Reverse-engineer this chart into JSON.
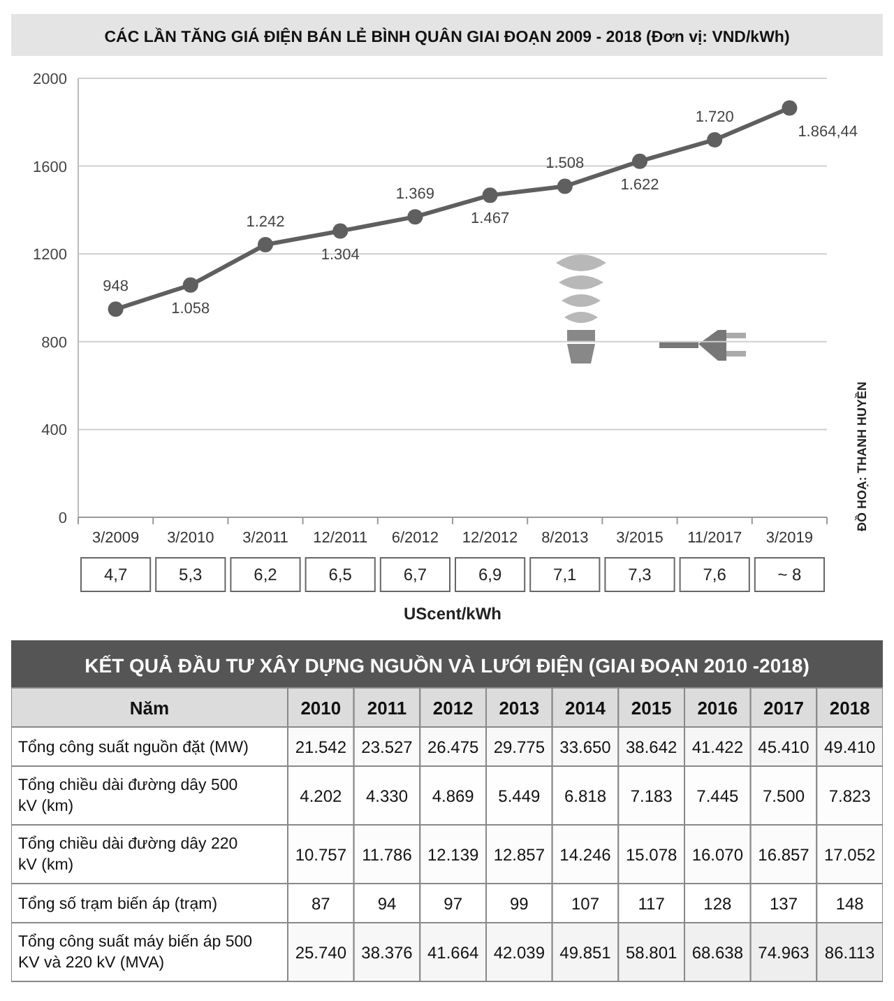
{
  "chart_data": [
    {
      "type": "line",
      "title": "CÁC LẦN TĂNG GIÁ ĐIỆN BÁN LẺ BÌNH QUÂN GIAI ĐOẠN 2009 - 2018 (Đơn vị: VND/kWh)",
      "categories": [
        "3/2009",
        "3/2010",
        "3/2011",
        "12/2011",
        "6/2012",
        "12/2012",
        "8/2013",
        "3/2015",
        "11/2017",
        "3/2019"
      ],
      "series": [
        {
          "color": "#5f5f5f",
          "values": [
            948,
            1058,
            1242,
            1304,
            1369,
            1467,
            1508,
            1622,
            1720,
            1864.44
          ]
        }
      ],
      "value_labels": [
        "948",
        "1.058",
        "1.242",
        "1.304",
        "1.369",
        "1.467",
        "1.508",
        "1.622",
        "1.720",
        "1.864,44"
      ],
      "ylim": [
        0,
        2000
      ],
      "yticks": [
        0,
        400,
        800,
        1200,
        1600,
        2000
      ],
      "grid": "y",
      "marker": "circle",
      "xlabel": "UScent/kWh",
      "annotations": [
        "4,7",
        "5,3",
        "6,2",
        "6,5",
        "6,7",
        "6,9",
        "7,1",
        "7,3",
        "7,6",
        "~ 8",
        "ĐỒ HOẠ: THANH HUYỀN"
      ]
    },
    {
      "type": "heatmap",
      "title": "KẾT QUẢ ĐẦU TƯ XÂY DỰNG NGUỒN VÀ LƯỚI ĐIỆN (GIAI ĐOẠN 2010 -2018)",
      "ylabel": "Năm",
      "categories": [
        "2010",
        "2011",
        "2012",
        "2013",
        "2014",
        "2015",
        "2016",
        "2017",
        "2018"
      ],
      "y_categories": [
        "Tổng công suất nguồn đặt (MW)",
        "Tổng chiều dài đường dây 500 kV (km)",
        "Tổng chiều dài đường dây 220 kV (km)",
        "Tổng số trạm biến áp (trạm)",
        "Tổng công suất máy biến áp 500 KV và 220 kV (MVA)"
      ],
      "cells": [
        [
          21542,
          23527,
          26475,
          29775,
          33650,
          38642,
          41422,
          45410,
          49410
        ],
        [
          4202,
          4330,
          4869,
          5449,
          6818,
          7183,
          7445,
          7500,
          7823
        ],
        [
          10757,
          11786,
          12139,
          12857,
          14246,
          15078,
          16070,
          16857,
          17052
        ],
        [
          87,
          94,
          97,
          99,
          107,
          117,
          128,
          137,
          148
        ],
        [
          25740,
          38376,
          41664,
          42039,
          49851,
          58801,
          68638,
          74963,
          86113
        ]
      ],
      "cell_labels": [
        [
          "21.542",
          "23.527",
          "26.475",
          "29.775",
          "33.650",
          "38.642",
          "41.422",
          "45.410",
          "49.410"
        ],
        [
          "4.202",
          "4.330",
          "4.869",
          "5.449",
          "6.818",
          "7.183",
          "7.445",
          "7.500",
          "7.823"
        ],
        [
          "10.757",
          "11.786",
          "12.139",
          "12.857",
          "14.246",
          "15.078",
          "16.070",
          "16.857",
          "17.052"
        ],
        [
          "87",
          "94",
          "97",
          "99",
          "107",
          "117",
          "128",
          "137",
          "148"
        ],
        [
          "25.740",
          "38.376",
          "41.664",
          "42.039",
          "49.851",
          "58.801",
          "68.638",
          "74.963",
          "86.113"
        ]
      ]
    }
  ]
}
